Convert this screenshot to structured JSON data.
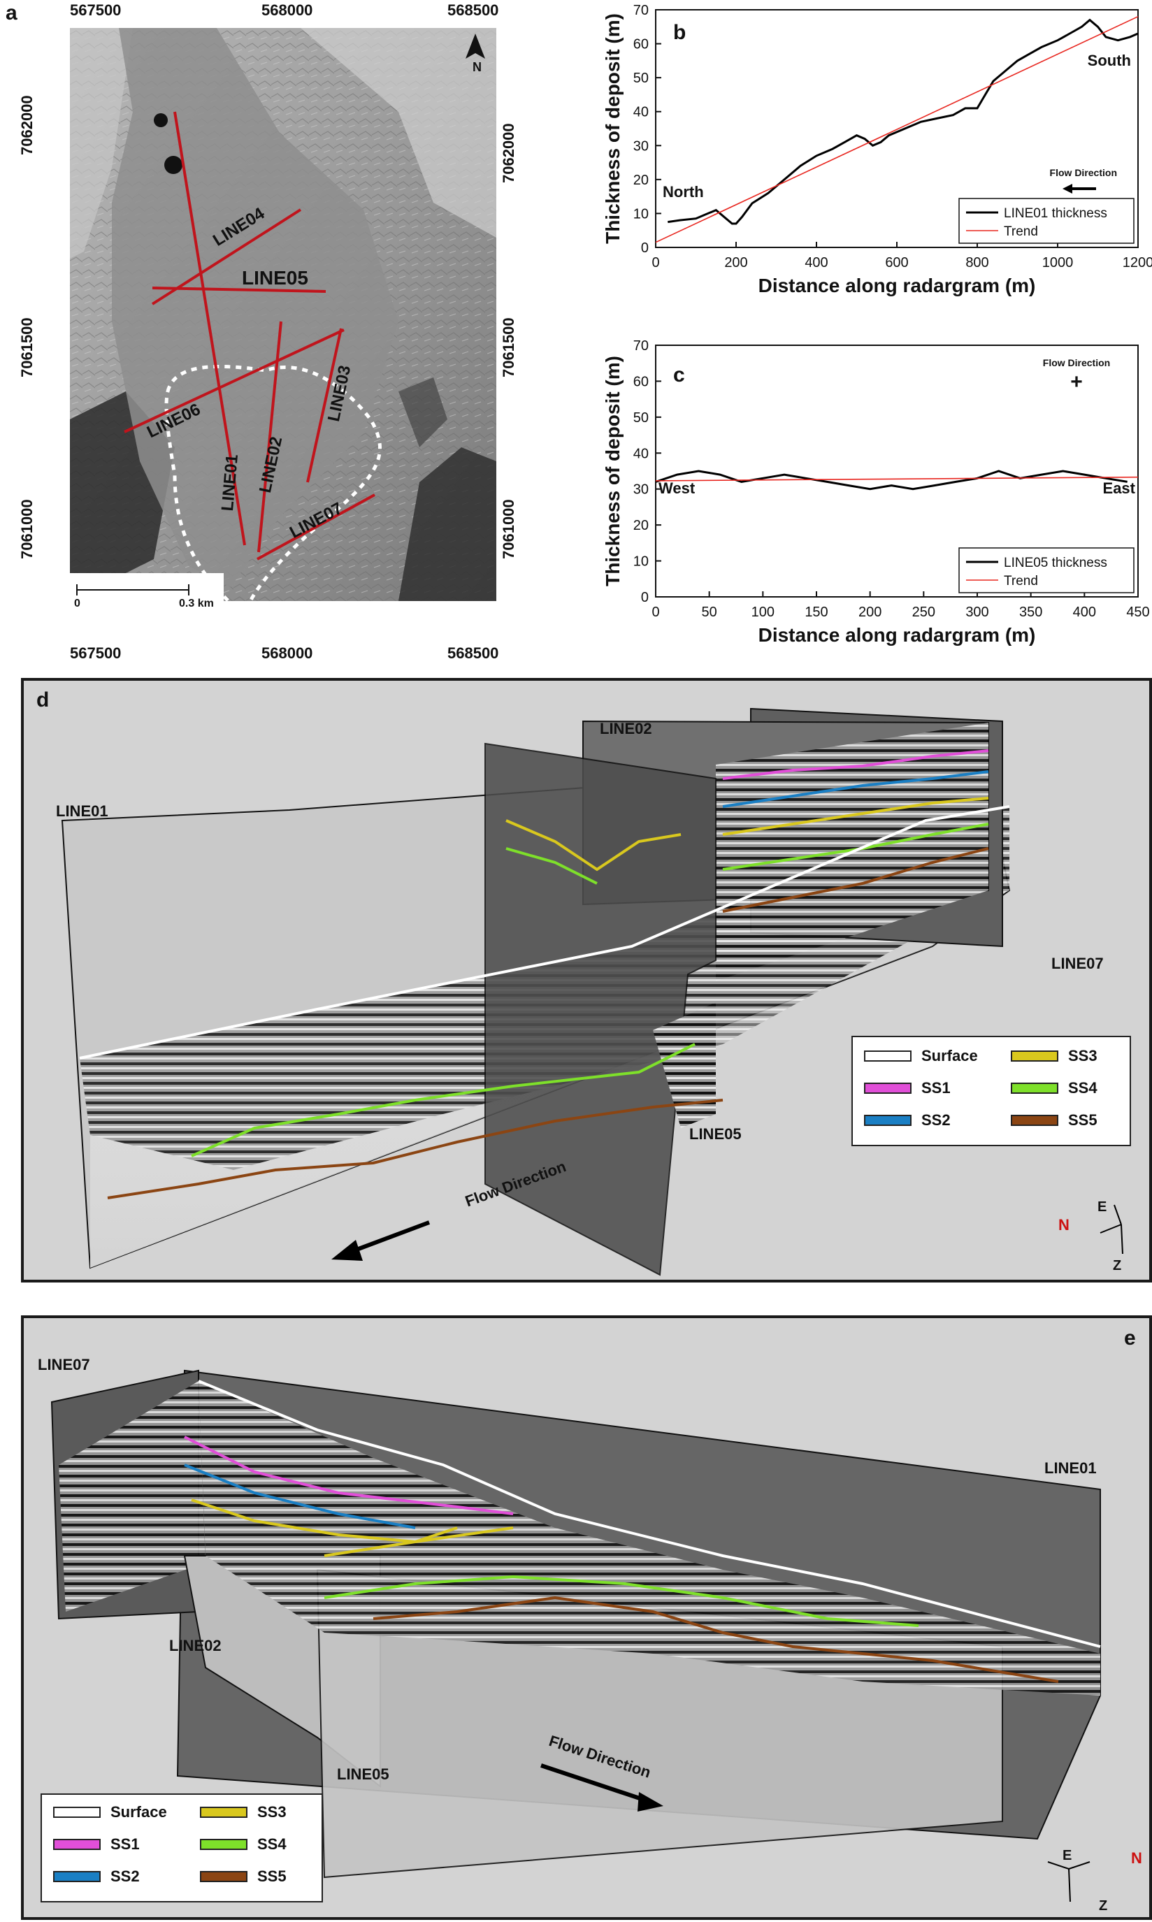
{
  "panel_a": {
    "letter": "a",
    "north_label": "N",
    "scalebar": {
      "start": "0",
      "end": "0.3 km"
    },
    "x_ticks": [
      "567500",
      "568000",
      "568500"
    ],
    "y_ticks": [
      "7062000",
      "7061500",
      "7061000"
    ],
    "line_labels": [
      "LINE04",
      "LINE05",
      "LINE06",
      "LINE03",
      "LINE01",
      "LINE02",
      "LINE07"
    ],
    "line_color": "#c0141c",
    "outline_color": "#ffffff"
  },
  "panel_b": {
    "letter": "b",
    "annotations": {
      "north": "North",
      "south": "South",
      "flow": "Flow Direction"
    },
    "chart_data": {
      "type": "line",
      "xlabel": "Distance along radargram (m)",
      "ylabel": "Thickness of deposit (m)",
      "xlim": [
        0,
        1200
      ],
      "ylim": [
        0,
        70
      ],
      "xticks": [
        0,
        200,
        400,
        600,
        800,
        1000,
        1200
      ],
      "yticks": [
        0,
        10,
        20,
        30,
        40,
        50,
        60,
        70
      ],
      "legend_position": "bottom-right",
      "series": [
        {
          "name": "LINE01 thickness",
          "color": "#000000",
          "x": [
            30,
            60,
            100,
            130,
            150,
            170,
            190,
            200,
            215,
            240,
            280,
            320,
            360,
            400,
            440,
            470,
            500,
            520,
            540,
            560,
            580,
            620,
            660,
            700,
            740,
            770,
            800,
            820,
            840,
            870,
            900,
            930,
            960,
            1000,
            1030,
            1060,
            1080,
            1100,
            1120,
            1150,
            1180,
            1200
          ],
          "y": [
            7.5,
            8,
            8.5,
            10,
            11,
            9,
            7,
            7,
            9,
            13,
            16,
            20,
            24,
            27,
            29,
            31,
            33,
            32,
            30,
            31,
            33,
            35,
            37,
            38,
            39,
            41,
            41,
            45,
            49,
            52,
            55,
            57,
            59,
            61,
            63,
            65,
            67,
            65,
            62,
            61,
            62,
            63
          ]
        },
        {
          "name": "Trend",
          "color": "#e8261f",
          "x": [
            0,
            1200
          ],
          "y": [
            1.5,
            68
          ]
        }
      ]
    }
  },
  "panel_c": {
    "letter": "c",
    "annotations": {
      "west": "West",
      "east": "East",
      "flow": "Flow Direction"
    },
    "chart_data": {
      "type": "line",
      "xlabel": "Distance along radargram (m)",
      "ylabel": "Thickness of deposit (m)",
      "xlim": [
        0,
        450
      ],
      "ylim": [
        0,
        70
      ],
      "xticks": [
        0,
        50,
        100,
        150,
        200,
        250,
        300,
        350,
        400,
        450
      ],
      "yticks": [
        0,
        10,
        20,
        30,
        40,
        50,
        60,
        70
      ],
      "legend_position": "bottom-right",
      "series": [
        {
          "name": "LINE05 thickness",
          "color": "#000000",
          "x": [
            0,
            20,
            40,
            60,
            80,
            100,
            120,
            140,
            160,
            180,
            200,
            220,
            240,
            260,
            280,
            300,
            320,
            340,
            360,
            380,
            400,
            420,
            440
          ],
          "y": [
            32,
            34,
            35,
            34,
            32,
            33,
            34,
            33,
            32,
            31,
            30,
            31,
            30,
            31,
            32,
            33,
            35,
            33,
            34,
            35,
            34,
            33,
            32
          ]
        },
        {
          "name": "Trend",
          "color": "#e8261f",
          "x": [
            0,
            450
          ],
          "y": [
            32.3,
            33.3
          ]
        }
      ]
    }
  },
  "panel_d": {
    "letter": "d",
    "line_labels": {
      "line01": "LINE01",
      "line02": "LINE02",
      "line05": "LINE05",
      "line07": "LINE07"
    },
    "flow": "Flow Direction",
    "axes": {
      "north": "N",
      "east": "E",
      "z": "Z"
    }
  },
  "panel_e": {
    "letter": "e",
    "line_labels": {
      "line07": "LINE07",
      "line01": "LINE01",
      "line02": "LINE02",
      "line05": "LINE05"
    },
    "flow": "Flow Direction",
    "axes": {
      "north": "N",
      "east": "E",
      "z": "Z"
    }
  },
  "legend": {
    "items": [
      {
        "label": "Surface",
        "color": "#ffffff"
      },
      {
        "label": "SS3",
        "color": "#d9c81e"
      },
      {
        "label": "SS1",
        "color": "#e14fd8"
      },
      {
        "label": "SS4",
        "color": "#7ee02a"
      },
      {
        "label": "SS2",
        "color": "#1a7fc4"
      },
      {
        "label": "SS5",
        "color": "#8b4513"
      }
    ]
  }
}
